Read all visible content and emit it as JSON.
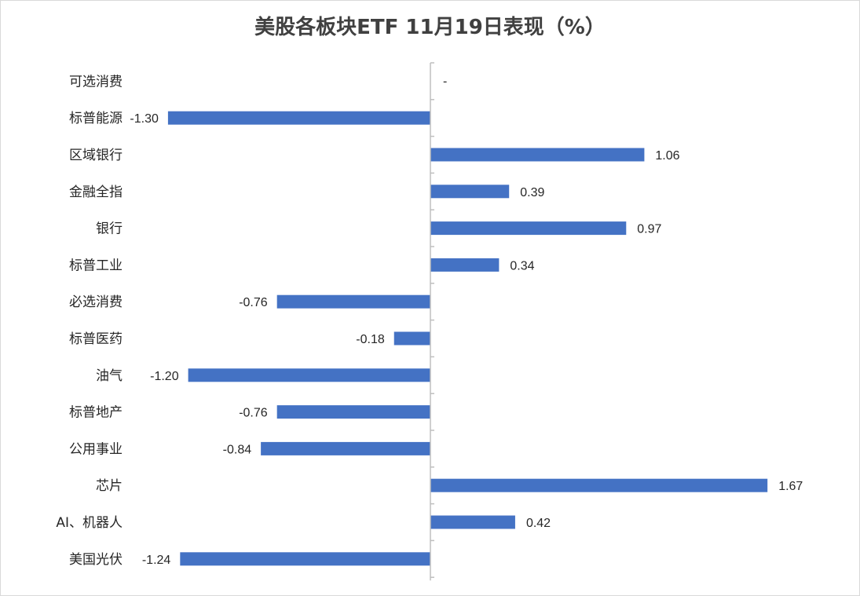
{
  "chart_data": {
    "type": "bar",
    "orientation": "horizontal",
    "title": "美股各板块ETF  11月19日表现（%）",
    "categories": [
      "可选消费",
      "标普能源",
      "区域银行",
      "金融全指",
      "银行",
      "标普工业",
      "必选消费",
      "标普医药",
      "油气",
      "标普地产",
      "公用事业",
      "芯片",
      "AI、机器人",
      "美国光伏"
    ],
    "values": [
      null,
      -1.3,
      1.06,
      0.39,
      0.97,
      0.34,
      -0.76,
      -0.18,
      -1.2,
      -0.76,
      -0.84,
      1.67,
      0.42,
      -1.24
    ],
    "value_labels": [
      "-",
      "-1.30",
      "1.06",
      "0.39",
      "0.97",
      "0.34",
      "-0.76",
      "-0.18",
      "-1.20",
      "-0.76",
      "-0.84",
      "1.67",
      "0.42",
      "-1.24"
    ],
    "bar_color": "#4472c4",
    "axis_color": "#bfbfbf",
    "grid": false,
    "legend": "none"
  }
}
